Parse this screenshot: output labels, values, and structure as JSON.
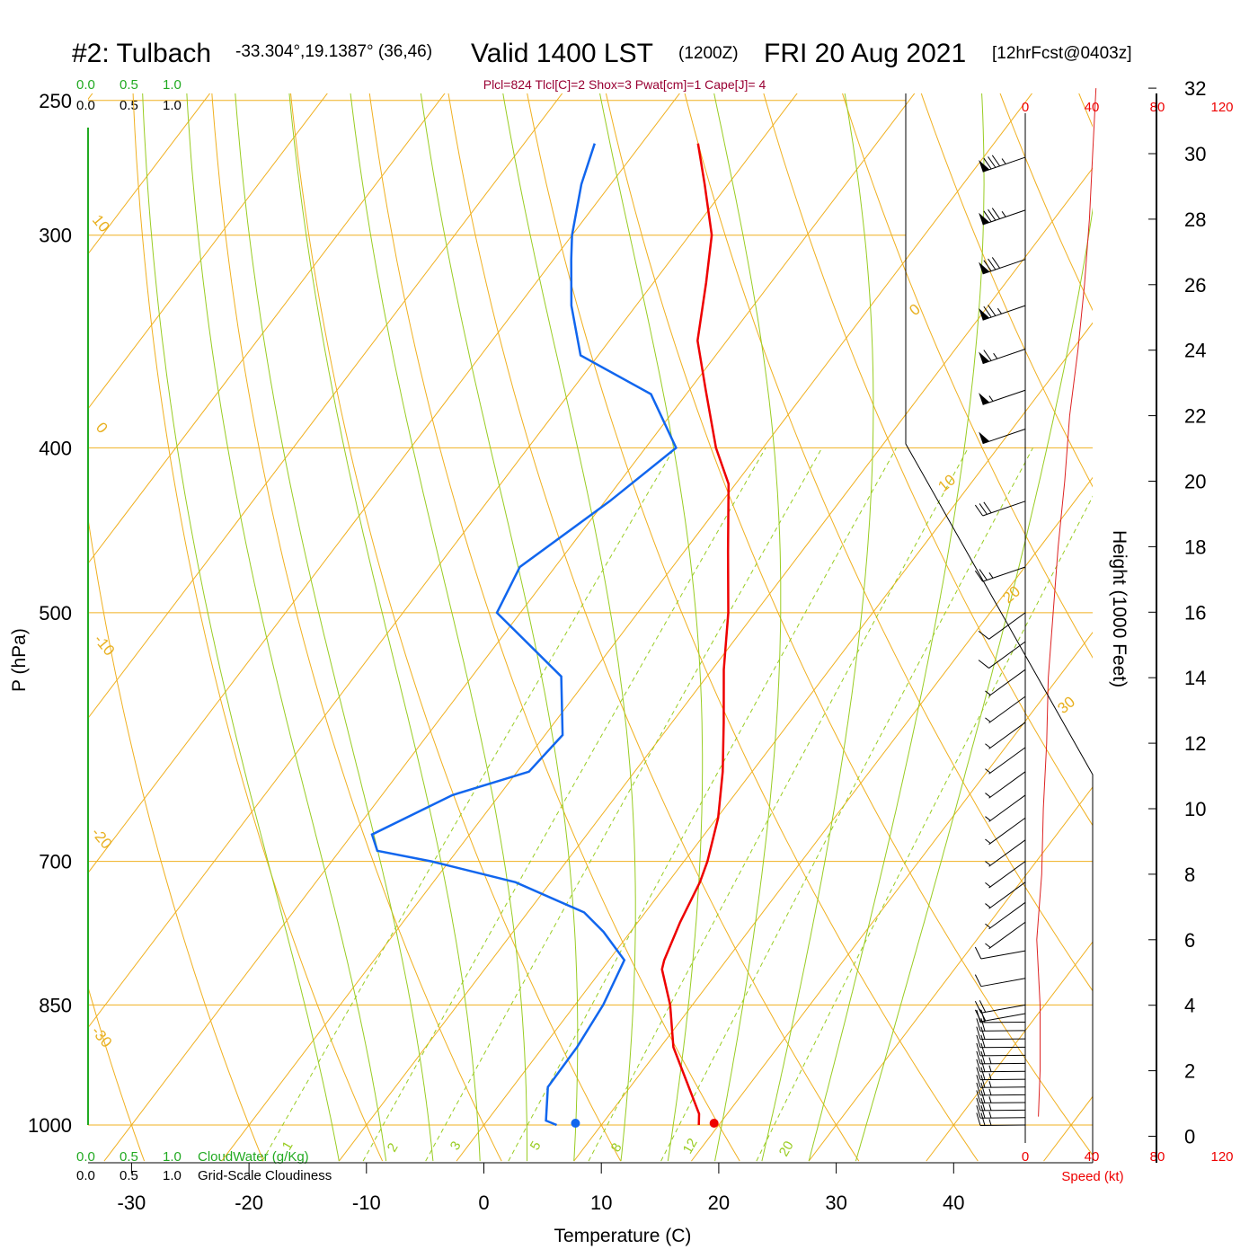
{
  "header": {
    "station": "#2: Tulbach",
    "location": "-33.304°,19.1387° (36,46)",
    "valid": "Valid 1400 LST",
    "zulu": "(1200Z)",
    "date": "FRI 20 Aug 2021",
    "forecast": "[12hrFcst@0403z]"
  },
  "indices": "Plcl=824 Tlcl[C]=2 Shox=3 Pwat[cm]=1 Cape[J]= 4",
  "cloud_scale": {
    "green_ticks": [
      "0.0",
      "0.5",
      "1.0"
    ],
    "black_ticks": [
      "0.0",
      "0.5",
      "1.0"
    ],
    "cloudwater_label": "CloudWater (g/Kg)",
    "cloudiness_label": "Grid-Scale Cloudiness"
  },
  "speed_axis": {
    "ticks": [
      "0",
      "40",
      "80",
      "120"
    ],
    "label": "Speed (kt)"
  },
  "height_axis": {
    "label": "Height (1000 Feet)",
    "ticks": [
      "0",
      "2",
      "4",
      "6",
      "8",
      "10",
      "12",
      "14",
      "16",
      "18",
      "20",
      "22",
      "24",
      "26",
      "28",
      "30",
      "32"
    ]
  },
  "colors": {
    "temperature": "#ee0000",
    "dewpoint": "#1166ee",
    "isotherm": "#f0b020",
    "dry_adiabat": "#f0b020",
    "moist_adiabat": "#99cc22",
    "mixing_ratio": "#99cc22",
    "speed_profile": "#dd2222"
  },
  "isotherm_labels": [
    "0",
    "10",
    "20",
    "30"
  ],
  "left_isotherm_labels": [
    "10",
    "0",
    "-10",
    "-20",
    "-30"
  ],
  "mixing_ratio_labels": [
    "1",
    "2",
    "3",
    "5",
    "8",
    "12",
    "20"
  ],
  "surface_markers": {
    "temperature": 19.6,
    "dewpoint": 7.8
  },
  "chart_data": {
    "type": "line",
    "title": "#2: Tulbach Valid 1400 LST (1200Z) FRI 20 Aug 2021 [12hrFcst@0403z]",
    "xlabel": "Temperature (C)",
    "ylabel": "P (hPa)",
    "x_ticks": [
      "-30",
      "-20",
      "-10",
      "0",
      "10",
      "20",
      "30",
      "40"
    ],
    "y_ticks": [
      "250",
      "300",
      "400",
      "500",
      "700",
      "850",
      "1000"
    ],
    "xlim": [
      -30,
      40
    ],
    "ylim": [
      1000,
      250
    ],
    "y_scale": "log",
    "grid": true,
    "series": [
      {
        "name": "Temperature",
        "points": [
          [
            18.3,
            1000
          ],
          [
            17.6,
            985
          ],
          [
            11.1,
            900
          ],
          [
            8.1,
            850
          ],
          [
            5.1,
            810
          ],
          [
            4.7,
            800
          ],
          [
            3.6,
            760
          ],
          [
            2.7,
            720
          ],
          [
            2.0,
            700
          ],
          [
            0.1,
            660
          ],
          [
            -2.5,
            620
          ],
          [
            -5.6,
            580
          ],
          [
            -9.0,
            540
          ],
          [
            -12.3,
            500
          ],
          [
            -16.3,
            460
          ],
          [
            -20.6,
            420
          ],
          [
            -24.0,
            400
          ],
          [
            -28.6,
            370
          ],
          [
            -32.5,
            346
          ],
          [
            -35.5,
            320
          ],
          [
            -38.1,
            300
          ],
          [
            -42.0,
            280
          ],
          [
            -45.2,
            265
          ]
        ]
      },
      {
        "name": "Dewpoint",
        "points": [
          [
            6.2,
            1000
          ],
          [
            5.0,
            994
          ],
          [
            3.0,
            950
          ],
          [
            2.9,
            900
          ],
          [
            2.4,
            850
          ],
          [
            1.3,
            800
          ],
          [
            -2.3,
            770
          ],
          [
            -5.2,
            750
          ],
          [
            -13.0,
            720
          ],
          [
            -21.5,
            700
          ],
          [
            -26.8,
            690
          ],
          [
            -28.3,
            675
          ],
          [
            -24.0,
            640
          ],
          [
            -19.0,
            620
          ],
          [
            -18.5,
            590
          ],
          [
            -22.4,
            545
          ],
          [
            -32.0,
            500
          ],
          [
            -33.0,
            470
          ],
          [
            -29.6,
            430
          ],
          [
            -27.4,
            400
          ],
          [
            -33.0,
            372
          ],
          [
            -41.5,
            353
          ],
          [
            -45.5,
            330
          ],
          [
            -48.5,
            310
          ],
          [
            -50.0,
            300
          ],
          [
            -52.5,
            280
          ],
          [
            -54.0,
            265
          ]
        ]
      }
    ],
    "wind_profile_kt": [
      [
        0.6,
        8
      ],
      [
        2,
        9
      ],
      [
        4,
        9
      ],
      [
        6,
        7
      ],
      [
        8,
        10
      ],
      [
        10,
        11
      ],
      [
        12,
        13
      ],
      [
        14,
        14
      ],
      [
        16,
        17
      ],
      [
        18,
        20
      ],
      [
        20,
        24
      ],
      [
        22,
        27
      ],
      [
        24,
        32
      ],
      [
        26,
        36
      ],
      [
        28,
        39
      ],
      [
        30,
        41
      ],
      [
        32,
        43
      ]
    ],
    "wind_barbs": [
      {
        "p": 1000,
        "kt": 25
      },
      {
        "p": 990,
        "kt": 25
      },
      {
        "p": 980,
        "kt": 25
      },
      {
        "p": 970,
        "kt": 25
      },
      {
        "p": 960,
        "kt": 25
      },
      {
        "p": 950,
        "kt": 25
      },
      {
        "p": 940,
        "kt": 25
      },
      {
        "p": 930,
        "kt": 25
      },
      {
        "p": 920,
        "kt": 25
      },
      {
        "p": 910,
        "kt": 20
      },
      {
        "p": 900,
        "kt": 20
      },
      {
        "p": 890,
        "kt": 20
      },
      {
        "p": 880,
        "kt": 20
      },
      {
        "p": 870,
        "kt": 20
      },
      {
        "p": 860,
        "kt": 20
      },
      {
        "p": 850,
        "kt": 20
      },
      {
        "p": 820,
        "kt": 10
      },
      {
        "p": 790,
        "kt": 10
      },
      {
        "p": 760,
        "kt": 5
      },
      {
        "p": 740,
        "kt": 5
      },
      {
        "p": 720,
        "kt": 5
      },
      {
        "p": 700,
        "kt": 5
      },
      {
        "p": 680,
        "kt": 5
      },
      {
        "p": 660,
        "kt": 5
      },
      {
        "p": 640,
        "kt": 5
      },
      {
        "p": 620,
        "kt": 5
      },
      {
        "p": 600,
        "kt": 5
      },
      {
        "p": 580,
        "kt": 5
      },
      {
        "p": 560,
        "kt": 5
      },
      {
        "p": 540,
        "kt": 5
      },
      {
        "p": 520,
        "kt": 10
      },
      {
        "p": 500,
        "kt": 10
      },
      {
        "p": 470,
        "kt": 25
      },
      {
        "p": 430,
        "kt": 30
      },
      {
        "p": 390,
        "kt": 50
      },
      {
        "p": 370,
        "kt": 55
      },
      {
        "p": 350,
        "kt": 65
      },
      {
        "p": 330,
        "kt": 75
      },
      {
        "p": 310,
        "kt": 80
      },
      {
        "p": 290,
        "kt": 85
      },
      {
        "p": 270,
        "kt": 85
      }
    ]
  }
}
